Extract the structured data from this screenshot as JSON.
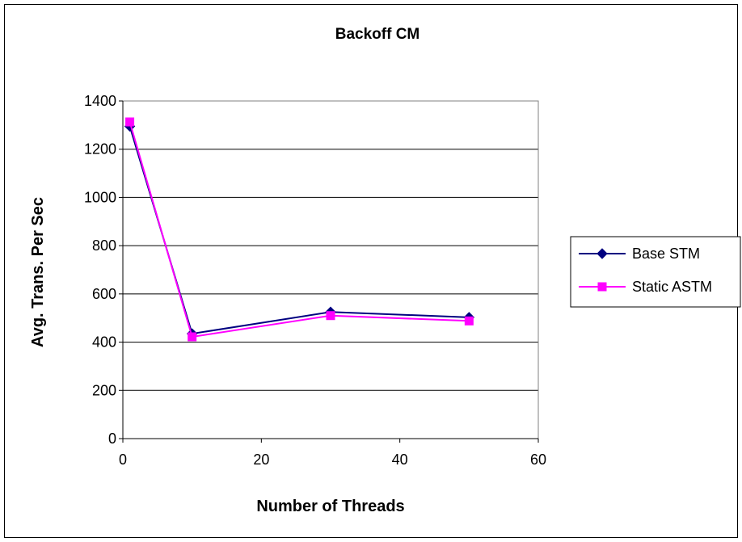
{
  "chart_data": {
    "type": "line",
    "title": "Backoff CM",
    "xlabel": "Number of Threads",
    "ylabel": "Avg. Trans. Per Sec",
    "xlim": [
      0,
      60
    ],
    "ylim": [
      0,
      1400
    ],
    "xticks": [
      0,
      20,
      40,
      60
    ],
    "yticks": [
      0,
      200,
      400,
      600,
      800,
      1000,
      1200,
      1400
    ],
    "grid": "horizontal",
    "legend_position": "right",
    "series": [
      {
        "name": "Base STM",
        "color": "#000080",
        "marker": "diamond",
        "x": [
          1,
          10,
          30,
          50
        ],
        "y": [
          1295,
          435,
          525,
          503
        ]
      },
      {
        "name": "Static ASTM",
        "color": "#FF00FF",
        "marker": "square",
        "x": [
          1,
          10,
          30,
          50
        ],
        "y": [
          1313,
          422,
          510,
          488
        ]
      }
    ]
  }
}
